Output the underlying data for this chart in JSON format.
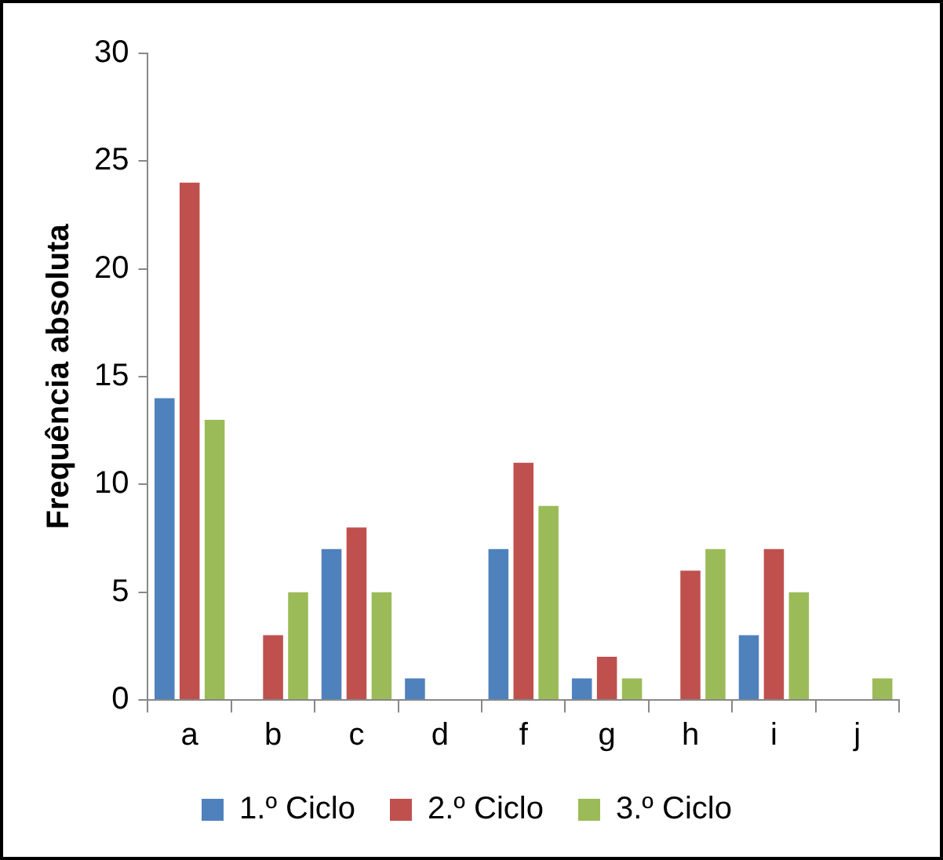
{
  "chart_data": {
    "type": "bar",
    "ylabel": "Frequência absoluta",
    "categories": [
      "a",
      "b",
      "c",
      "d",
      "f",
      "g",
      "h",
      "i",
      "j"
    ],
    "series": [
      {
        "name": "1.º Ciclo",
        "color": "#4f81bd",
        "values": [
          14,
          0,
          7,
          1,
          7,
          1,
          0,
          3,
          0
        ]
      },
      {
        "name": "2.º Ciclo",
        "color": "#c0504d",
        "values": [
          24,
          3,
          8,
          0,
          11,
          2,
          6,
          7,
          0
        ]
      },
      {
        "name": "3.º Ciclo",
        "color": "#9bbb59",
        "values": [
          13,
          5,
          5,
          0,
          9,
          1,
          7,
          5,
          1
        ]
      }
    ],
    "ylim": [
      0,
      30
    ],
    "yticks": [
      0,
      5,
      10,
      15,
      20,
      25,
      30
    ],
    "grid": false,
    "legend": "bottom"
  }
}
